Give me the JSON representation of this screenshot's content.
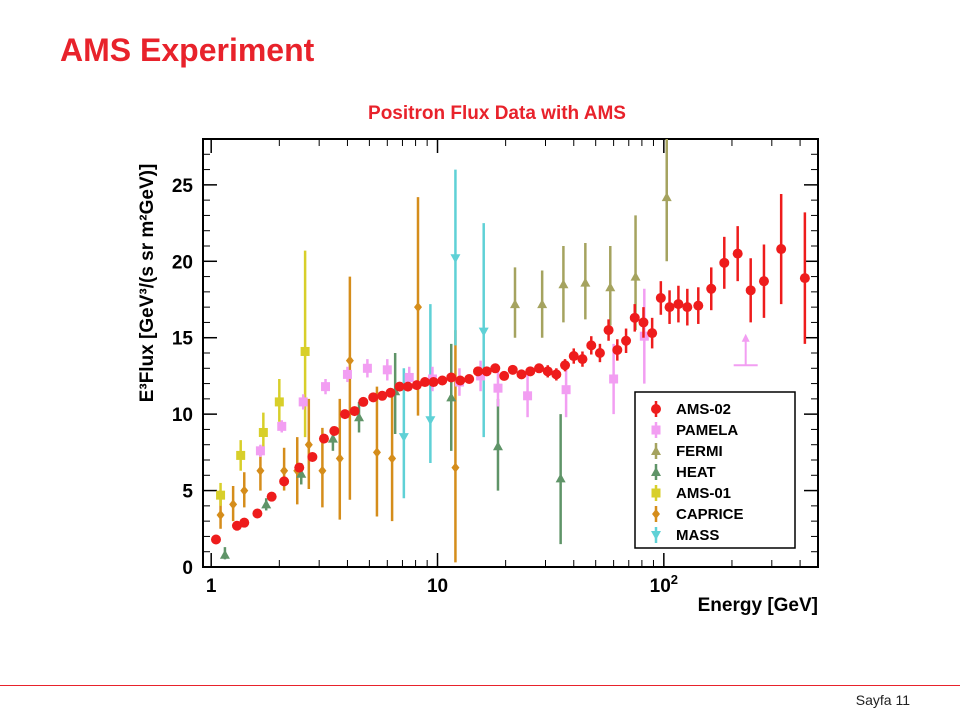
{
  "slide": {
    "title": "AMS Experiment",
    "footer": "Sayfa 11",
    "accent_color": "#e8222b"
  },
  "chart_data": {
    "type": "scatter",
    "title": "Positron Flux Data with AMS",
    "xlabel": "Energy [GeV]",
    "ylabel": "E³Flux [GeV³/(s sr m²GeV)]",
    "x_scale": "log",
    "xlim": [
      0.92,
      480
    ],
    "ylim": [
      0,
      28
    ],
    "x_ticks": [
      {
        "value": 1,
        "label": "1"
      },
      {
        "value": 10,
        "label": "10"
      },
      {
        "value": 100,
        "label": "10",
        "sup": "2"
      }
    ],
    "y_ticks": [
      0,
      5,
      10,
      15,
      20,
      25
    ],
    "legend_position": "bottom-right",
    "series": [
      {
        "name": "AMS-02",
        "color": "#ee1c1c",
        "marker": "circle",
        "points": [
          {
            "x": 1.05,
            "y": 1.8,
            "lo": 1.7,
            "hi": 1.9
          },
          {
            "x": 1.3,
            "y": 2.7,
            "lo": 2.6,
            "hi": 2.8
          },
          {
            "x": 1.4,
            "y": 2.9,
            "lo": 2.8,
            "hi": 3.0
          },
          {
            "x": 1.6,
            "y": 3.5,
            "lo": 3.4,
            "hi": 3.6
          },
          {
            "x": 1.85,
            "y": 4.6,
            "lo": 4.5,
            "hi": 4.7
          },
          {
            "x": 2.1,
            "y": 5.6,
            "lo": 5.5,
            "hi": 5.7
          },
          {
            "x": 2.45,
            "y": 6.5,
            "lo": 6.4,
            "hi": 6.6
          },
          {
            "x": 2.8,
            "y": 7.2,
            "lo": 7.1,
            "hi": 7.3
          },
          {
            "x": 3.15,
            "y": 8.4,
            "lo": 8.3,
            "hi": 8.5
          },
          {
            "x": 3.5,
            "y": 8.9,
            "lo": 8.8,
            "hi": 9.0
          },
          {
            "x": 3.9,
            "y": 10.0,
            "lo": 9.9,
            "hi": 10.1
          },
          {
            "x": 4.3,
            "y": 10.2,
            "lo": 10.1,
            "hi": 10.3
          },
          {
            "x": 4.7,
            "y": 10.8,
            "lo": 10.7,
            "hi": 10.9
          },
          {
            "x": 5.2,
            "y": 11.1,
            "lo": 11.0,
            "hi": 11.2
          },
          {
            "x": 5.7,
            "y": 11.2,
            "lo": 11.1,
            "hi": 11.3
          },
          {
            "x": 6.2,
            "y": 11.4,
            "lo": 11.3,
            "hi": 11.5
          },
          {
            "x": 6.8,
            "y": 11.8,
            "lo": 11.7,
            "hi": 11.9
          },
          {
            "x": 7.4,
            "y": 11.8,
            "lo": 11.7,
            "hi": 11.9
          },
          {
            "x": 8.1,
            "y": 11.9,
            "lo": 11.8,
            "hi": 12.0
          },
          {
            "x": 8.8,
            "y": 12.1,
            "lo": 12.0,
            "hi": 12.2
          },
          {
            "x": 9.6,
            "y": 12.1,
            "lo": 12.0,
            "hi": 12.2
          },
          {
            "x": 10.5,
            "y": 12.2,
            "lo": 12.1,
            "hi": 12.3
          },
          {
            "x": 11.5,
            "y": 12.4,
            "lo": 12.3,
            "hi": 12.5
          },
          {
            "x": 12.6,
            "y": 12.2,
            "lo": 12.0,
            "hi": 12.4
          },
          {
            "x": 13.8,
            "y": 12.3,
            "lo": 12.1,
            "hi": 12.5
          },
          {
            "x": 15.1,
            "y": 12.8,
            "lo": 12.6,
            "hi": 13.0
          },
          {
            "x": 16.5,
            "y": 12.8,
            "lo": 12.6,
            "hi": 13.0
          },
          {
            "x": 18.0,
            "y": 13.0,
            "lo": 12.8,
            "hi": 13.2
          },
          {
            "x": 19.7,
            "y": 12.5,
            "lo": 12.2,
            "hi": 12.8
          },
          {
            "x": 21.5,
            "y": 12.9,
            "lo": 12.6,
            "hi": 13.2
          },
          {
            "x": 23.5,
            "y": 12.6,
            "lo": 12.3,
            "hi": 12.9
          },
          {
            "x": 25.7,
            "y": 12.8,
            "lo": 12.5,
            "hi": 13.1
          },
          {
            "x": 28.1,
            "y": 13.0,
            "lo": 12.7,
            "hi": 13.3
          },
          {
            "x": 30.7,
            "y": 12.8,
            "lo": 12.4,
            "hi": 13.2
          },
          {
            "x": 33.5,
            "y": 12.6,
            "lo": 12.2,
            "hi": 13.0
          },
          {
            "x": 36.6,
            "y": 13.2,
            "lo": 12.8,
            "hi": 13.6
          },
          {
            "x": 40.0,
            "y": 13.8,
            "lo": 13.3,
            "hi": 14.3
          },
          {
            "x": 43.7,
            "y": 13.6,
            "lo": 13.1,
            "hi": 14.1
          },
          {
            "x": 47.8,
            "y": 14.5,
            "lo": 13.9,
            "hi": 15.1
          },
          {
            "x": 52.2,
            "y": 14.0,
            "lo": 13.4,
            "hi": 14.6
          },
          {
            "x": 57.0,
            "y": 15.5,
            "lo": 14.8,
            "hi": 16.2
          },
          {
            "x": 62.3,
            "y": 14.2,
            "lo": 13.5,
            "hi": 14.9
          },
          {
            "x": 68.1,
            "y": 14.8,
            "lo": 14.0,
            "hi": 15.6
          },
          {
            "x": 74.4,
            "y": 16.3,
            "lo": 15.4,
            "hi": 17.2
          },
          {
            "x": 81.3,
            "y": 16.0,
            "lo": 15.0,
            "hi": 17.0
          },
          {
            "x": 88.8,
            "y": 15.3,
            "lo": 14.3,
            "hi": 16.3
          },
          {
            "x": 97.0,
            "y": 17.6,
            "lo": 16.5,
            "hi": 18.7
          },
          {
            "x": 106,
            "y": 17.0,
            "lo": 15.9,
            "hi": 18.1
          },
          {
            "x": 116,
            "y": 17.2,
            "lo": 16.0,
            "hi": 18.4
          },
          {
            "x": 127,
            "y": 17.0,
            "lo": 15.8,
            "hi": 18.2
          },
          {
            "x": 142,
            "y": 17.1,
            "lo": 15.9,
            "hi": 18.3
          },
          {
            "x": 162,
            "y": 18.2,
            "lo": 16.8,
            "hi": 19.6
          },
          {
            "x": 185,
            "y": 19.9,
            "lo": 18.2,
            "hi": 21.6
          },
          {
            "x": 212,
            "y": 20.5,
            "lo": 18.7,
            "hi": 22.3
          },
          {
            "x": 242,
            "y": 18.1,
            "lo": 16.0,
            "hi": 20.2
          },
          {
            "x": 277,
            "y": 18.7,
            "lo": 16.3,
            "hi": 21.1
          },
          {
            "x": 330,
            "y": 20.8,
            "lo": 17.2,
            "hi": 24.4
          },
          {
            "x": 420,
            "y": 18.9,
            "lo": 14.6,
            "hi": 23.2
          }
        ]
      },
      {
        "name": "PAMELA",
        "color": "#f29ef2",
        "marker": "square",
        "points": [
          {
            "x": 1.65,
            "y": 7.6,
            "lo": 7.2,
            "hi": 8.0
          },
          {
            "x": 2.05,
            "y": 9.2,
            "lo": 8.8,
            "hi": 9.6
          },
          {
            "x": 2.55,
            "y": 10.8,
            "lo": 10.3,
            "hi": 11.3
          },
          {
            "x": 3.2,
            "y": 11.8,
            "lo": 11.3,
            "hi": 12.3
          },
          {
            "x": 4.0,
            "y": 12.6,
            "lo": 12.1,
            "hi": 13.1
          },
          {
            "x": 4.9,
            "y": 13.0,
            "lo": 12.4,
            "hi": 13.6
          },
          {
            "x": 6.0,
            "y": 12.9,
            "lo": 12.2,
            "hi": 13.6
          },
          {
            "x": 7.5,
            "y": 12.4,
            "lo": 11.7,
            "hi": 13.1
          },
          {
            "x": 9.5,
            "y": 12.3,
            "lo": 11.5,
            "hi": 13.1
          },
          {
            "x": 12.5,
            "y": 12.1,
            "lo": 11.2,
            "hi": 13.0
          },
          {
            "x": 15.5,
            "y": 12.5,
            "lo": 11.5,
            "hi": 13.5
          },
          {
            "x": 18.5,
            "y": 11.7,
            "lo": 10.5,
            "hi": 12.9
          },
          {
            "x": 25.0,
            "y": 11.2,
            "lo": 9.8,
            "hi": 12.6
          },
          {
            "x": 37.0,
            "y": 11.6,
            "lo": 9.8,
            "hi": 13.4
          },
          {
            "x": 60.0,
            "y": 12.3,
            "lo": 10.0,
            "hi": 14.6
          },
          {
            "x": 82.0,
            "y": 15.1,
            "lo": 12.0,
            "hi": 18.2
          }
        ]
      },
      {
        "name": "FERMI",
        "color": "#a5a35f",
        "marker": "triangle-up",
        "points": [
          {
            "x": 22.0,
            "y": 17.2,
            "lo": 15.0,
            "hi": 19.6
          },
          {
            "x": 29.0,
            "y": 17.2,
            "lo": 15.0,
            "hi": 19.4
          },
          {
            "x": 36.0,
            "y": 18.5,
            "lo": 16.0,
            "hi": 21.0
          },
          {
            "x": 45.0,
            "y": 18.6,
            "lo": 16.2,
            "hi": 21.2
          },
          {
            "x": 58.0,
            "y": 18.3,
            "lo": 15.8,
            "hi": 21.0
          },
          {
            "x": 75.0,
            "y": 19.0,
            "lo": 15.5,
            "hi": 23.0
          },
          {
            "x": 103.0,
            "y": 24.2,
            "lo": 20.0,
            "hi": 28.0
          }
        ]
      },
      {
        "name": "HEAT",
        "color": "#5f9468",
        "marker": "triangle-up",
        "points": [
          {
            "x": 1.15,
            "y": 0.8,
            "lo": 0.5,
            "hi": 1.3
          },
          {
            "x": 1.75,
            "y": 4.1,
            "lo": 3.7,
            "hi": 4.5
          },
          {
            "x": 2.5,
            "y": 6.1,
            "lo": 5.4,
            "hi": 6.8
          },
          {
            "x": 3.45,
            "y": 8.4,
            "lo": 7.6,
            "hi": 9.2
          },
          {
            "x": 4.5,
            "y": 9.8,
            "lo": 8.8,
            "hi": 10.8
          },
          {
            "x": 6.5,
            "y": 11.5,
            "lo": 8.7,
            "hi": 14.0
          },
          {
            "x": 11.5,
            "y": 11.1,
            "lo": 7.6,
            "hi": 14.6
          },
          {
            "x": 18.5,
            "y": 7.9,
            "lo": 5.0,
            "hi": 11.0
          },
          {
            "x": 35.0,
            "y": 5.8,
            "lo": 1.5,
            "hi": 10.0
          }
        ]
      },
      {
        "name": "AMS-01",
        "color": "#d8cf2a",
        "marker": "square",
        "points": [
          {
            "x": 1.1,
            "y": 4.7,
            "lo": 4.0,
            "hi": 5.5
          },
          {
            "x": 1.35,
            "y": 7.3,
            "lo": 6.3,
            "hi": 8.3
          },
          {
            "x": 1.7,
            "y": 8.8,
            "lo": 7.5,
            "hi": 10.1
          },
          {
            "x": 2.0,
            "y": 10.8,
            "lo": 9.5,
            "hi": 12.3
          },
          {
            "x": 2.6,
            "y": 14.1,
            "lo": 8.5,
            "hi": 20.7
          }
        ]
      },
      {
        "name": "CAPRICE",
        "color": "#d58d1b",
        "marker": "diamond",
        "points": [
          {
            "x": 1.1,
            "y": 3.4,
            "lo": 2.5,
            "hi": 4.5
          },
          {
            "x": 1.25,
            "y": 4.1,
            "lo": 3.0,
            "hi": 5.3
          },
          {
            "x": 1.4,
            "y": 5.0,
            "lo": 3.9,
            "hi": 6.2
          },
          {
            "x": 1.65,
            "y": 6.3,
            "lo": 5.0,
            "hi": 7.5
          },
          {
            "x": 2.1,
            "y": 6.3,
            "lo": 5.0,
            "hi": 7.8
          },
          {
            "x": 2.4,
            "y": 6.3,
            "lo": 4.1,
            "hi": 8.5
          },
          {
            "x": 2.7,
            "y": 8.0,
            "lo": 5.1,
            "hi": 11.0
          },
          {
            "x": 3.1,
            "y": 6.3,
            "lo": 3.9,
            "hi": 9.1
          },
          {
            "x": 3.7,
            "y": 7.1,
            "lo": 3.1,
            "hi": 11.0
          },
          {
            "x": 4.1,
            "y": 13.5,
            "lo": 4.4,
            "hi": 19.0
          },
          {
            "x": 5.4,
            "y": 7.5,
            "lo": 3.3,
            "hi": 11.8
          },
          {
            "x": 6.3,
            "y": 7.1,
            "lo": 3.0,
            "hi": 11.5
          },
          {
            "x": 8.2,
            "y": 17.0,
            "lo": 9.9,
            "hi": 24.2
          },
          {
            "x": 12.0,
            "y": 6.5,
            "lo": 0.3,
            "hi": 15.5
          }
        ]
      },
      {
        "name": "MASS",
        "color": "#5fd1d6",
        "marker": "triangle-down",
        "points": [
          {
            "x": 7.1,
            "y": 8.5,
            "lo": 4.5,
            "hi": 13.0
          },
          {
            "x": 9.3,
            "y": 9.6,
            "lo": 6.8,
            "hi": 17.2
          },
          {
            "x": 12.0,
            "y": 20.2,
            "lo": 14.5,
            "hi": 26.0
          },
          {
            "x": 16.0,
            "y": 15.4,
            "lo": 8.5,
            "hi": 22.5
          }
        ]
      }
    ],
    "upper_limit": {
      "series": "PAMELA",
      "x": 230,
      "y": 13.2,
      "arrow_top": 15.0
    }
  }
}
